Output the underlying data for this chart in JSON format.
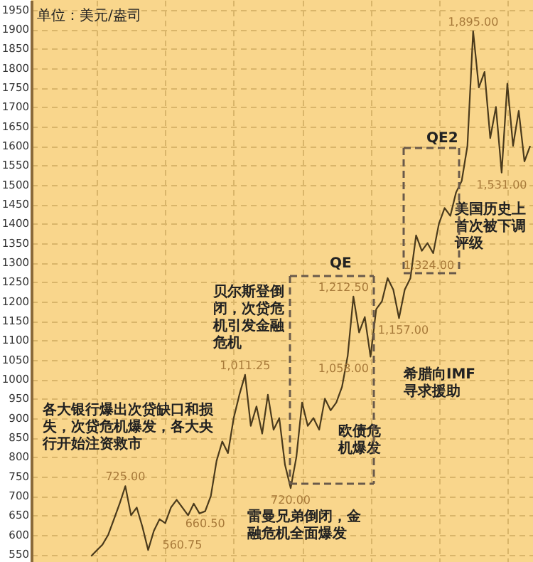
{
  "chart_data": {
    "type": "line",
    "title": "单位：美元/盎司",
    "categories": [
      null,
      null,
      null,
      null,
      null,
      null,
      null,
      null,
      null,
      null,
      null,
      null,
      null,
      null,
      null,
      null,
      null,
      null,
      null,
      null,
      null,
      null,
      null,
      null,
      null,
      null,
      null,
      null,
      null,
      null,
      null,
      null,
      null,
      null,
      null,
      null,
      null,
      null,
      null,
      null,
      null,
      null,
      null,
      null,
      null,
      null,
      null,
      null,
      null,
      null,
      null,
      null,
      null,
      null,
      null,
      null,
      null,
      null,
      null,
      null,
      null,
      null,
      null,
      null,
      null,
      null,
      null,
      null,
      null,
      null,
      null,
      null,
      null,
      null,
      null,
      null,
      null,
      null,
      null,
      null,
      null,
      null,
      null,
      null,
      null,
      null,
      null,
      null
    ],
    "series": [
      {
        "color": "#4a3a1c",
        "values": [
          null,
          null,
          null,
          null,
          null,
          null,
          null,
          null,
          null,
          null,
          545,
          560,
          575,
          600,
          640,
          680,
          725,
          650,
          670,
          620,
          560.75,
          610,
          640,
          630,
          670,
          690,
          670,
          650,
          680,
          655,
          660.5,
          700,
          790,
          840,
          810,
          900,
          960,
          1011.25,
          880,
          930,
          860,
          960,
          870,
          900,
          780,
          720,
          800,
          940,
          880,
          900,
          870,
          950,
          920,
          940,
          980,
          1060,
          1212.5,
          1120,
          1160,
          1058,
          1180,
          1200,
          1260,
          1230,
          1157,
          1230,
          1260,
          1370,
          1330,
          1350,
          1324,
          1400,
          1440,
          1420,
          1480,
          1510,
          1600,
          1895,
          1750,
          1790,
          1620,
          1700,
          1531,
          1760,
          1600,
          1690,
          1560,
          1600
        ],
        "value_labels": [
          null,
          null,
          null,
          null,
          null,
          null,
          null,
          null,
          null,
          null,
          null,
          null,
          null,
          null,
          null,
          null,
          "725.00",
          null,
          null,
          null,
          "560.75",
          null,
          null,
          null,
          null,
          null,
          null,
          null,
          null,
          null,
          "660.50",
          null,
          null,
          null,
          null,
          null,
          null,
          "1,011.25",
          null,
          null,
          null,
          null,
          null,
          null,
          null,
          "720.00",
          null,
          null,
          null,
          null,
          null,
          null,
          null,
          null,
          null,
          null,
          "1,212.50",
          null,
          null,
          "1,058.00",
          null,
          null,
          null,
          null,
          "1,157.00",
          null,
          null,
          null,
          null,
          null,
          "1,324.00",
          null,
          null,
          null,
          null,
          null,
          null,
          "1,895.00",
          null,
          null,
          null,
          null,
          "1,531.00",
          null,
          null,
          null,
          null,
          null
        ]
      }
    ],
    "ylim": [
      530,
      1975
    ],
    "yticks": [
      550,
      600,
      650,
      700,
      750,
      800,
      850,
      900,
      950,
      1000,
      1050,
      1100,
      1150,
      1200,
      1250,
      1300,
      1350,
      1400,
      1450,
      1500,
      1550,
      1600,
      1650,
      1700,
      1750,
      1800,
      1850,
      1900,
      1950
    ],
    "grid": true,
    "tick_labels": "y",
    "annotations": [
      "各大银行爆出次贷缺口和损失，次贷危机爆发，各大央行开始注资救市",
      "贝尔斯登倒闭，次贷危机引发金融危机",
      "雷曼兄弟倒闭，金融危机全面爆发",
      "欧债危机爆发",
      "希腊向IMF寻求援助",
      "美国历史上首次被下调评级",
      "QE",
      "QE2"
    ]
  }
}
